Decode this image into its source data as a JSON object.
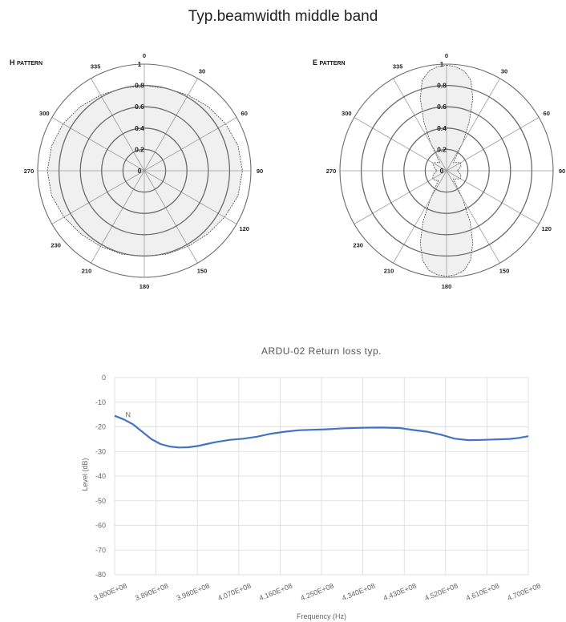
{
  "page_title": "Typ.beamwidth  middle band",
  "colors": {
    "pattern_fill": "#f0f0f0",
    "pattern_stroke": "#444444",
    "grid": "#6b6b6b",
    "return_loss_line": "#4472c4"
  },
  "chart_data": [
    {
      "type": "polar",
      "label_main": "H",
      "label_suffix": "PATTERN",
      "angle_ticks": [
        0,
        30,
        60,
        90,
        120,
        150,
        180,
        210,
        230,
        270,
        300,
        335
      ],
      "radial_labels": [
        "0",
        "0.2",
        "0.4",
        "0.6",
        "0.8",
        "1"
      ],
      "rlim": [
        0,
        1
      ],
      "angles_deg": [
        0,
        15,
        30,
        45,
        60,
        75,
        90,
        105,
        120,
        135,
        150,
        165,
        180,
        195,
        210,
        225,
        240,
        255,
        270,
        285,
        300,
        315,
        330,
        345
      ],
      "radii": [
        0.8,
        0.8,
        0.82,
        0.85,
        0.88,
        0.91,
        0.92,
        0.91,
        0.87,
        0.84,
        0.82,
        0.81,
        0.8,
        0.81,
        0.82,
        0.84,
        0.87,
        0.9,
        0.91,
        0.9,
        0.88,
        0.85,
        0.82,
        0.8
      ]
    },
    {
      "type": "polar",
      "label_main": "E",
      "label_suffix": "PATTERN",
      "angle_ticks": [
        0,
        30,
        60,
        90,
        120,
        150,
        180,
        210,
        230,
        270,
        300,
        335
      ],
      "radial_labels": [
        "0",
        "0.2",
        "0.4",
        "0.6",
        "0.8",
        "1"
      ],
      "rlim": [
        0,
        1
      ],
      "angles_deg": [
        0,
        5,
        10,
        15,
        20,
        25,
        30,
        40,
        50,
        60,
        75,
        90,
        105,
        120,
        130,
        140,
        150,
        155,
        160,
        165,
        170,
        175,
        180,
        185,
        190,
        195,
        200,
        205,
        210,
        220,
        230,
        240,
        255,
        270,
        285,
        300,
        310,
        320,
        330,
        335,
        340,
        345,
        350,
        355
      ],
      "radii": [
        0.99,
        0.98,
        0.95,
        0.88,
        0.72,
        0.5,
        0.3,
        0.1,
        0.12,
        0.15,
        0.14,
        0.1,
        0.14,
        0.15,
        0.12,
        0.1,
        0.3,
        0.52,
        0.72,
        0.87,
        0.95,
        0.98,
        0.99,
        0.98,
        0.95,
        0.87,
        0.72,
        0.52,
        0.3,
        0.12,
        0.14,
        0.15,
        0.13,
        0.09,
        0.12,
        0.15,
        0.12,
        0.1,
        0.3,
        0.5,
        0.72,
        0.88,
        0.95,
        0.98
      ]
    },
    {
      "type": "line",
      "title": "ARDU-02  Return loss typ.",
      "xlabel": "Frequency (Hz)",
      "ylabel": "Level (dB)",
      "xlim": [
        380000000,
        470000000
      ],
      "ylim": [
        -80,
        0
      ],
      "y_ticks": [
        0,
        -10,
        -20,
        -30,
        -40,
        -50,
        -60,
        -70,
        -80
      ],
      "x_tick_values": [
        380000000,
        389000000,
        398000000,
        407000000,
        416000000,
        425000000,
        434000000,
        443000000,
        452000000,
        461000000,
        470000000
      ],
      "x_tick_labels": [
        "3.800E+08",
        "3.890E+08",
        "3.980E+08",
        "4.070E+08",
        "4.160E+08",
        "4.250E+08",
        "4.340E+08",
        "4.430E+08",
        "4.520E+08",
        "4.610E+08",
        "4.700E+08"
      ],
      "annotation": "N",
      "series": [
        {
          "x": [
            380000000,
            382000000,
            384000000,
            386000000,
            388000000,
            390000000,
            392000000,
            394000000,
            396000000,
            398000000,
            400000000,
            402000000,
            405000000,
            408000000,
            411000000,
            414000000,
            417000000,
            420000000,
            423000000,
            426000000,
            430000000,
            434000000,
            438000000,
            442000000,
            445000000,
            448000000,
            451000000,
            454000000,
            457000000,
            460000000,
            463000000,
            466000000,
            468000000,
            470000000
          ],
          "y": [
            -15.5,
            -17.0,
            -19.0,
            -22.0,
            -25.0,
            -27.0,
            -28.0,
            -28.4,
            -28.3,
            -27.8,
            -27.0,
            -26.2,
            -25.3,
            -24.8,
            -24.0,
            -22.8,
            -22.0,
            -21.4,
            -21.2,
            -21.0,
            -20.6,
            -20.4,
            -20.3,
            -20.5,
            -21.3,
            -22.0,
            -23.2,
            -24.8,
            -25.4,
            -25.3,
            -25.1,
            -24.9,
            -24.5,
            -23.8
          ]
        }
      ]
    }
  ]
}
